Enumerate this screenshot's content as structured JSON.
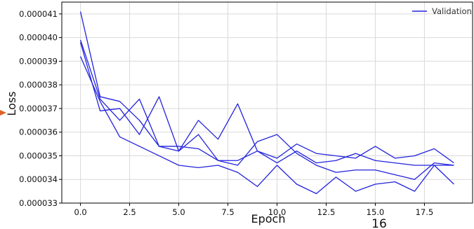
{
  "chart_data": {
    "type": "line",
    "xlabel": "Epoch",
    "ylabel": "Loss",
    "xlim": [
      -0.95,
      19.95
    ],
    "ylim": [
      3.3e-05,
      4.15e-05
    ],
    "xticks": [
      0.0,
      2.5,
      5.0,
      7.5,
      10.0,
      12.5,
      15.0,
      17.5
    ],
    "xtick_labels": [
      "0.0",
      "2.5",
      "5.0",
      "7.5",
      "10.0",
      "12.5",
      "15.0",
      "17.5"
    ],
    "yticks": [
      3.3e-05,
      3.4e-05,
      3.5e-05,
      3.6e-05,
      3.7e-05,
      3.8e-05,
      3.9e-05,
      4e-05,
      4.1e-05
    ],
    "ytick_labels": [
      "0.000033",
      "0.000034",
      "0.000035",
      "0.000036",
      "0.000037",
      "0.000038",
      "0.000039",
      "0.000040",
      "0.000041"
    ],
    "grid": true,
    "legend": {
      "entries": [
        "Validation"
      ],
      "placement": "top-right"
    },
    "line_color": "#2222dd",
    "series": [
      {
        "x": [
          0,
          1,
          2,
          3,
          4,
          5,
          6,
          7,
          8,
          9,
          10,
          11,
          12,
          13,
          14,
          15,
          16,
          17,
          18,
          19
        ],
        "values": [
          4.11e-05,
          3.75e-05,
          3.73e-05,
          3.65e-05,
          3.54e-05,
          3.54e-05,
          3.53e-05,
          3.48e-05,
          3.48e-05,
          3.52e-05,
          3.49e-05,
          3.55e-05,
          3.51e-05,
          3.5e-05,
          3.49e-05,
          3.54e-05,
          3.49e-05,
          3.5e-05,
          3.53e-05,
          3.47e-05
        ]
      },
      {
        "x": [
          0,
          1,
          2,
          3,
          4,
          5,
          6,
          7,
          8,
          9,
          10,
          11,
          12,
          13,
          14,
          15,
          16,
          17,
          18,
          19
        ],
        "values": [
          3.99e-05,
          3.74e-05,
          3.65e-05,
          3.74e-05,
          3.54e-05,
          3.52e-05,
          3.65e-05,
          3.57e-05,
          3.72e-05,
          3.52e-05,
          3.47e-05,
          3.52e-05,
          3.47e-05,
          3.48e-05,
          3.51e-05,
          3.48e-05,
          3.47e-05,
          3.46e-05,
          3.46e-05,
          3.38e-05
        ]
      },
      {
        "x": [
          0,
          1,
          2,
          3,
          4,
          5,
          6,
          7,
          8,
          9,
          10,
          11,
          12,
          13,
          14,
          15,
          16,
          17,
          18,
          19
        ],
        "values": [
          3.98e-05,
          3.69e-05,
          3.7e-05,
          3.59e-05,
          3.75e-05,
          3.52e-05,
          3.59e-05,
          3.48e-05,
          3.46e-05,
          3.56e-05,
          3.59e-05,
          3.51e-05,
          3.46e-05,
          3.43e-05,
          3.44e-05,
          3.44e-05,
          3.42e-05,
          3.4e-05,
          3.47e-05,
          3.46e-05
        ]
      },
      {
        "x": [
          0,
          1,
          2,
          3,
          4,
          5,
          6,
          7,
          8,
          9,
          10,
          11,
          12,
          13,
          14,
          15,
          16,
          17,
          18,
          19
        ],
        "values": [
          3.92e-05,
          3.73e-05,
          3.58e-05,
          3.54e-05,
          3.5e-05,
          3.46e-05,
          3.45e-05,
          3.46e-05,
          3.43e-05,
          3.37e-05,
          3.46e-05,
          3.38e-05,
          3.34e-05,
          3.41e-05,
          3.35e-05,
          3.38e-05,
          3.39e-05,
          3.35e-05,
          3.46e-05,
          3.46e-05
        ]
      }
    ]
  },
  "annotations": {
    "corner_number": "16",
    "pointer_color": "#e0622a"
  }
}
